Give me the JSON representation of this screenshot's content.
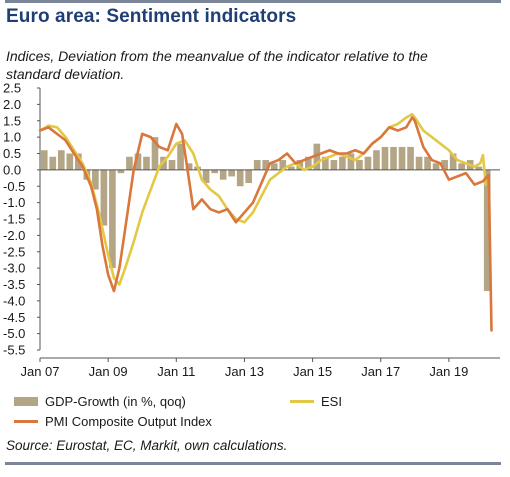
{
  "title": "Euro area: Sentiment indicators",
  "subtitle": "Indices, Deviation from the meanvalue of the indicator relative to the standard deviation.",
  "source": "Source: Eurostat, EC, Markit, own calculations.",
  "colors": {
    "title": "#1f3f74",
    "gdp": "#b3a585",
    "esi": "#e2c845",
    "pmi": "#d9773c",
    "rule": "#7b8799"
  },
  "chart_data": {
    "type": "bar+line",
    "xlabel": "",
    "ylabel": "",
    "ylim": [
      -5.5,
      2.5
    ],
    "yticks": [
      "2.5",
      "2.0",
      "1.5",
      "1.0",
      "0.5",
      "0.0",
      "-0.5",
      "-1.0",
      "-1.5",
      "-2.0",
      "-2.5",
      "-3.0",
      "-3.5",
      "-4.0",
      "-4.5",
      "-5.0",
      "-5.5"
    ],
    "ytick_values": [
      2.5,
      2.0,
      1.5,
      1.0,
      0.5,
      0.0,
      -0.5,
      -1.0,
      -1.5,
      -2.0,
      -2.5,
      -3.0,
      -3.5,
      -4.0,
      -4.5,
      -5.0,
      -5.5
    ],
    "xlim": [
      2007.0,
      2020.5
    ],
    "xticks": [
      {
        "label": "Jan 07",
        "x": 2007.0
      },
      {
        "label": "Jan 09",
        "x": 2009.0
      },
      {
        "label": "Jan 11",
        "x": 2011.0
      },
      {
        "label": "Jan 13",
        "x": 2013.0
      },
      {
        "label": "Jan 15",
        "x": 2015.0
      },
      {
        "label": "Jan 17",
        "x": 2017.0
      },
      {
        "label": "Jan 19",
        "x": 2019.0
      }
    ],
    "legend": [
      {
        "label": "GDP-Growth (in %, qoq)",
        "style": "bar"
      },
      {
        "label": "ESI",
        "style": "line"
      },
      {
        "label": "PMI Composite Output Index",
        "style": "line"
      }
    ],
    "series": [
      {
        "name": "GDP-Growth (in %, qoq)",
        "type": "bar",
        "x": [
          2007.0,
          2007.25,
          2007.5,
          2007.75,
          2008.0,
          2008.25,
          2008.5,
          2008.75,
          2009.0,
          2009.25,
          2009.5,
          2009.75,
          2010.0,
          2010.25,
          2010.5,
          2010.75,
          2011.0,
          2011.25,
          2011.5,
          2011.75,
          2012.0,
          2012.25,
          2012.5,
          2012.75,
          2013.0,
          2013.25,
          2013.5,
          2013.75,
          2014.0,
          2014.25,
          2014.5,
          2014.75,
          2015.0,
          2015.25,
          2015.5,
          2015.75,
          2016.0,
          2016.25,
          2016.5,
          2016.75,
          2017.0,
          2017.25,
          2017.5,
          2017.75,
          2018.0,
          2018.25,
          2018.5,
          2018.75,
          2019.0,
          2019.25,
          2019.5,
          2019.75,
          2020.0
        ],
        "values": [
          0.6,
          0.4,
          0.6,
          0.5,
          0.5,
          -0.3,
          -0.6,
          -1.7,
          -3.0,
          -0.1,
          0.4,
          0.5,
          0.4,
          1.0,
          0.4,
          0.3,
          0.8,
          0.2,
          0.1,
          -0.4,
          -0.1,
          -0.3,
          -0.2,
          -0.5,
          -0.4,
          0.3,
          0.3,
          0.2,
          0.3,
          0.1,
          0.3,
          0.4,
          0.8,
          0.4,
          0.3,
          0.4,
          0.5,
          0.3,
          0.4,
          0.6,
          0.7,
          0.7,
          0.7,
          0.7,
          0.4,
          0.4,
          0.2,
          0.3,
          0.5,
          0.2,
          0.3,
          0.1,
          -3.7
        ]
      },
      {
        "name": "ESI",
        "type": "line",
        "x": [
          2007.0,
          2007.25,
          2007.5,
          2007.75,
          2008.0,
          2008.25,
          2008.5,
          2008.75,
          2009.0,
          2009.17,
          2009.33,
          2009.5,
          2009.75,
          2010.0,
          2010.25,
          2010.5,
          2010.75,
          2011.0,
          2011.25,
          2011.5,
          2011.75,
          2012.0,
          2012.25,
          2012.5,
          2012.75,
          2013.0,
          2013.25,
          2013.5,
          2013.75,
          2014.0,
          2014.25,
          2014.5,
          2014.75,
          2015.0,
          2015.25,
          2015.5,
          2015.75,
          2016.0,
          2016.25,
          2016.5,
          2016.75,
          2017.0,
          2017.25,
          2017.5,
          2017.75,
          2017.92,
          2018.0,
          2018.25,
          2018.5,
          2018.75,
          2019.0,
          2019.25,
          2019.5,
          2019.75,
          2019.92,
          2020.0,
          2020.08
        ],
        "values": [
          1.2,
          1.35,
          1.3,
          1.0,
          0.6,
          0.2,
          -0.4,
          -1.4,
          -2.6,
          -3.3,
          -3.5,
          -3.0,
          -2.2,
          -1.3,
          -0.6,
          0.1,
          0.4,
          0.8,
          0.9,
          0.5,
          -0.3,
          -0.6,
          -0.8,
          -1.2,
          -1.5,
          -1.6,
          -1.3,
          -0.8,
          -0.3,
          -0.1,
          0.1,
          0.2,
          0.0,
          0.1,
          0.3,
          0.4,
          0.5,
          0.4,
          0.3,
          0.5,
          0.8,
          1.0,
          1.3,
          1.4,
          1.6,
          1.7,
          1.6,
          1.2,
          1.0,
          0.8,
          0.6,
          0.3,
          0.2,
          0.1,
          0.2,
          0.45,
          -0.45
        ]
      },
      {
        "name": "PMI Composite Output Index",
        "type": "line",
        "x": [
          2007.0,
          2007.25,
          2007.5,
          2007.75,
          2008.0,
          2008.25,
          2008.5,
          2008.67,
          2008.83,
          2009.0,
          2009.17,
          2009.33,
          2009.5,
          2009.75,
          2010.0,
          2010.25,
          2010.5,
          2010.75,
          2011.0,
          2011.17,
          2011.33,
          2011.5,
          2011.75,
          2012.0,
          2012.25,
          2012.5,
          2012.75,
          2013.0,
          2013.25,
          2013.5,
          2013.75,
          2014.0,
          2014.25,
          2014.5,
          2014.75,
          2015.0,
          2015.25,
          2015.5,
          2015.75,
          2016.0,
          2016.25,
          2016.5,
          2016.75,
          2017.0,
          2017.25,
          2017.5,
          2017.75,
          2017.92,
          2018.0,
          2018.25,
          2018.5,
          2018.75,
          2019.0,
          2019.25,
          2019.5,
          2019.75,
          2020.0,
          2020.17,
          2020.25
        ],
        "values": [
          1.2,
          1.3,
          1.1,
          0.9,
          0.5,
          0.1,
          -0.5,
          -1.2,
          -2.3,
          -3.2,
          -3.7,
          -3.0,
          -1.8,
          0.0,
          1.1,
          1.0,
          0.7,
          0.6,
          1.4,
          1.1,
          0.0,
          -1.2,
          -0.9,
          -1.2,
          -1.3,
          -1.2,
          -1.6,
          -1.3,
          -1.0,
          -0.4,
          0.2,
          0.3,
          0.5,
          0.2,
          0.3,
          0.4,
          0.5,
          0.6,
          0.5,
          0.5,
          0.6,
          0.5,
          0.8,
          1.0,
          1.3,
          1.2,
          1.3,
          1.6,
          1.5,
          0.7,
          0.3,
          0.2,
          -0.3,
          -0.2,
          -0.1,
          -0.45,
          -0.35,
          -0.15,
          -4.9
        ]
      }
    ]
  }
}
